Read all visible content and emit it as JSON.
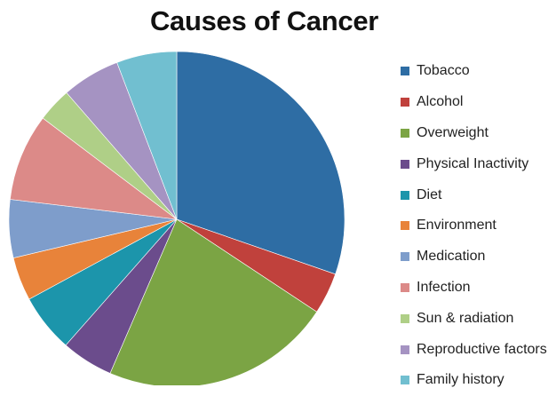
{
  "chart_data": {
    "type": "pie",
    "title": "Causes of Cancer",
    "legend_position": "right",
    "slices": [
      {
        "label": "Tobacco",
        "value": 30.3,
        "color": "#2E6DA4"
      },
      {
        "label": "Alcohol",
        "value": 4.0,
        "color": "#C0413C"
      },
      {
        "label": "Overweight",
        "value": 22.2,
        "color": "#7BA444"
      },
      {
        "label": "Physical Inactivity",
        "value": 5.0,
        "color": "#6B4C8C"
      },
      {
        "label": "Diet",
        "value": 5.6,
        "color": "#1C95AB"
      },
      {
        "label": "Environment",
        "value": 4.2,
        "color": "#E8833A"
      },
      {
        "label": "Medication",
        "value": 5.6,
        "color": "#7E9DCB"
      },
      {
        "label": "Infection",
        "value": 8.4,
        "color": "#DC8A88"
      },
      {
        "label": "Sun & radiation",
        "value": 3.3,
        "color": "#AFCF87"
      },
      {
        "label": "Reproductive factors",
        "value": 5.6,
        "color": "#A593C2"
      },
      {
        "label": "Family history",
        "value": 5.8,
        "color": "#71BFD0"
      }
    ]
  }
}
